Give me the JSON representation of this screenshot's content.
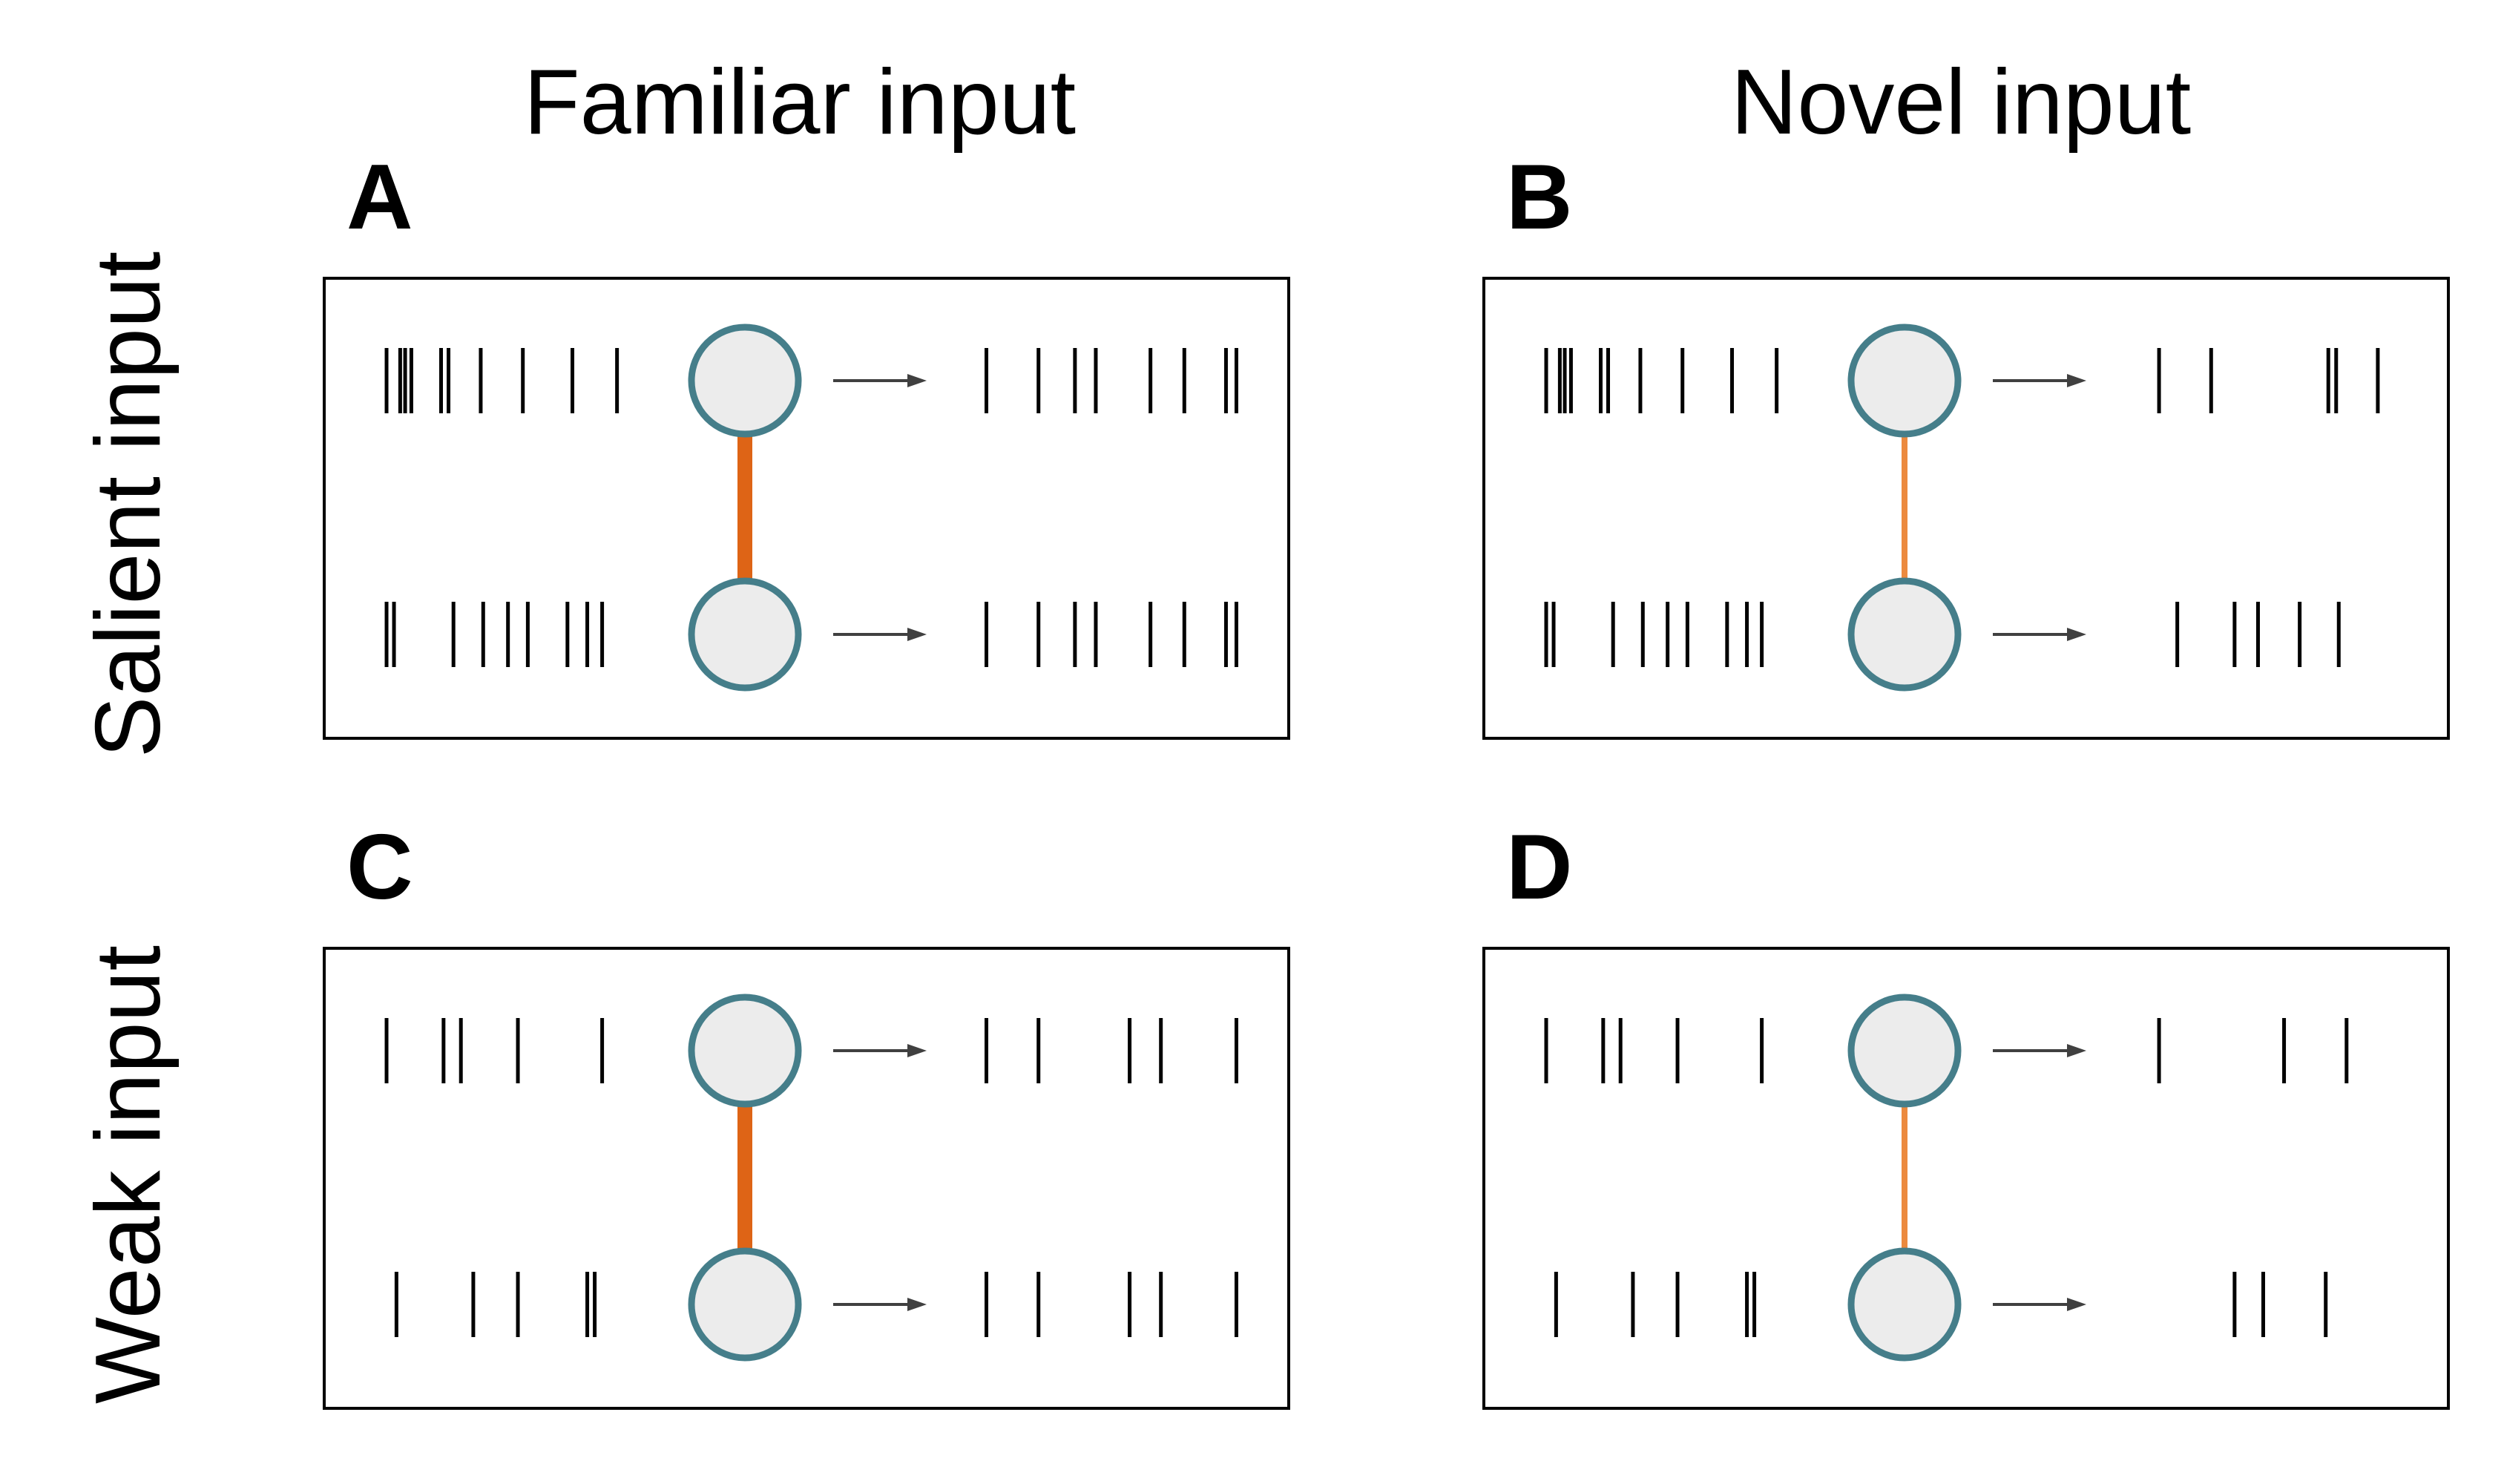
{
  "columns": [
    {
      "title": "Familiar input"
    },
    {
      "title": "Novel input"
    }
  ],
  "rows": [
    {
      "title": "Salient input"
    },
    {
      "title": "Weak input"
    }
  ],
  "panels": [
    {
      "id": "A",
      "label": "A",
      "column": 0,
      "row": 0,
      "coupling": "strong",
      "in_top": [
        0.03,
        0.085,
        0.105,
        0.13,
        0.25,
        0.28,
        0.41,
        0.58,
        0.78,
        0.96
      ],
      "in_bot": [
        0.03,
        0.06,
        0.3,
        0.42,
        0.52,
        0.6,
        0.76,
        0.84,
        0.9
      ],
      "out_top": [
        0.03,
        0.23,
        0.37,
        0.45,
        0.66,
        0.79,
        0.95,
        0.99
      ],
      "out_bot": [
        0.03,
        0.23,
        0.37,
        0.45,
        0.66,
        0.79,
        0.95,
        0.99
      ]
    },
    {
      "id": "B",
      "label": "B",
      "column": 1,
      "row": 0,
      "coupling": "weak",
      "in_top": [
        0.03,
        0.085,
        0.105,
        0.13,
        0.25,
        0.28,
        0.41,
        0.58,
        0.78,
        0.96
      ],
      "in_bot": [
        0.03,
        0.06,
        0.3,
        0.42,
        0.52,
        0.6,
        0.76,
        0.84,
        0.9
      ],
      "out_top": [
        0.08,
        0.28,
        0.73,
        0.76,
        0.92
      ],
      "out_bot": [
        0.15,
        0.37,
        0.46,
        0.62,
        0.77
      ]
    },
    {
      "id": "C",
      "label": "C",
      "column": 0,
      "row": 1,
      "coupling": "strong",
      "in_top": [
        0.03,
        0.26,
        0.33,
        0.56,
        0.9
      ],
      "in_bot": [
        0.07,
        0.38,
        0.56,
        0.84,
        0.87
      ],
      "out_top": [
        0.03,
        0.23,
        0.58,
        0.7,
        0.99
      ],
      "out_bot": [
        0.03,
        0.23,
        0.58,
        0.7,
        0.99
      ]
    },
    {
      "id": "D",
      "label": "D",
      "column": 1,
      "row": 1,
      "coupling": "weak",
      "in_top": [
        0.03,
        0.26,
        0.33,
        0.56,
        0.9
      ],
      "in_bot": [
        0.07,
        0.38,
        0.56,
        0.84,
        0.87
      ],
      "out_top": [
        0.08,
        0.56,
        0.8
      ],
      "out_bot": [
        0.37,
        0.48,
        0.72
      ]
    }
  ],
  "colors": {
    "frame": "#000000",
    "spike": "#000000",
    "neuron_fill": "#ececec",
    "neuron_stroke": "#457e8a",
    "coupling_strong": "#de6416",
    "coupling_weak": "#ec8a3f",
    "arrow": "#404040"
  },
  "icons": {
    "neuron": "circle",
    "arrow": "right-arrow",
    "coupling": "connection-line",
    "spike": "vertical-tick"
  }
}
